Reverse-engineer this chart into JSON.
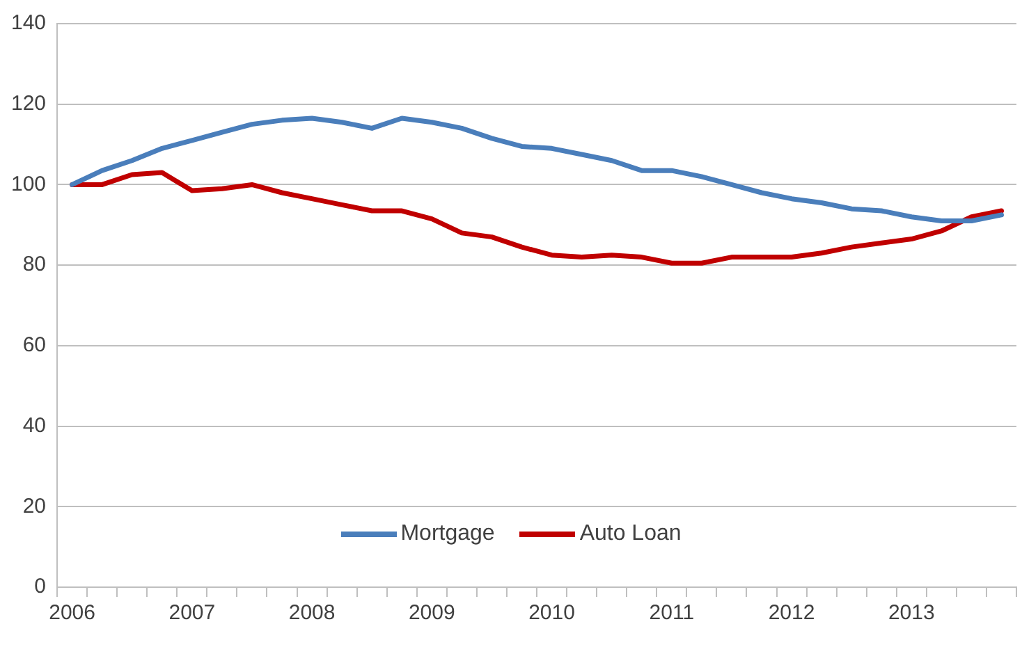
{
  "chart_data": {
    "type": "line",
    "categories": [
      "2006",
      null,
      null,
      null,
      "2007",
      null,
      null,
      null,
      "2008",
      null,
      null,
      null,
      "2009",
      null,
      null,
      null,
      "2010",
      null,
      null,
      null,
      "2011",
      null,
      null,
      null,
      "2012",
      null,
      null,
      null,
      "2013",
      null,
      null,
      null
    ],
    "series": [
      {
        "name": "Mortgage",
        "color": "#4a7ebb",
        "values": [
          100,
          103.5,
          106,
          109,
          111,
          113,
          115,
          116,
          116.5,
          115.5,
          114,
          116.5,
          115.5,
          114,
          111.5,
          109.5,
          109,
          107.5,
          106,
          103.5,
          103.5,
          102,
          100,
          98,
          96.5,
          95.5,
          94,
          93.5,
          92,
          91,
          91,
          92.5
        ]
      },
      {
        "name": "Auto Loan",
        "color": "#c00000",
        "values": [
          100,
          100,
          102.5,
          103,
          98.5,
          99,
          100,
          98,
          96.5,
          95,
          93.5,
          93.5,
          91.5,
          88,
          87,
          84.5,
          82.5,
          82,
          82.5,
          82,
          80.5,
          80.5,
          82,
          82,
          82,
          83,
          84.5,
          85.5,
          86.5,
          88.5,
          92,
          93.5
        ]
      }
    ],
    "ylim": [
      0,
      140
    ],
    "yticks": [
      0,
      20,
      40,
      60,
      80,
      100,
      120,
      140
    ],
    "grid": "y",
    "legend": "bottom",
    "marker": "none",
    "line_style": "solid"
  }
}
